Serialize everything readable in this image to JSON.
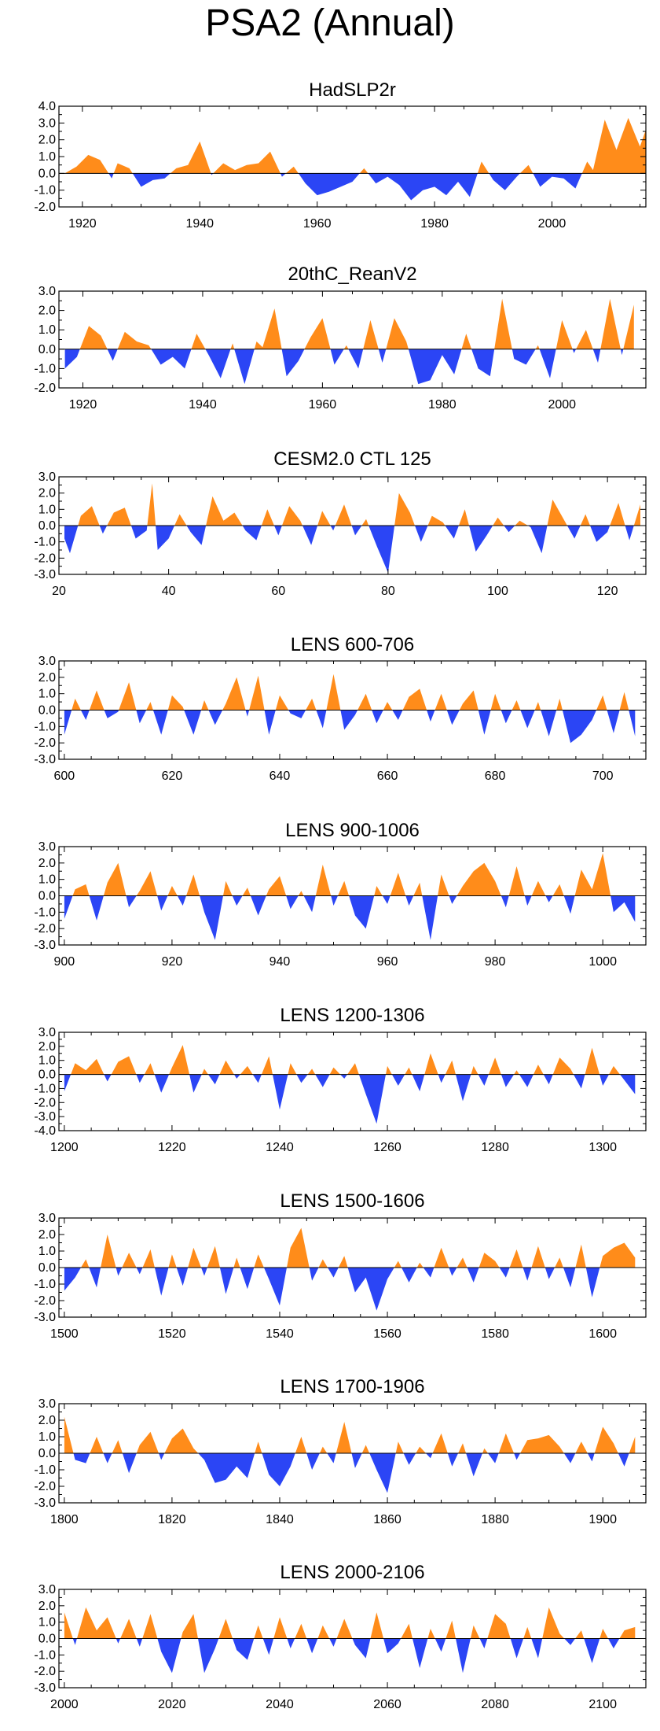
{
  "page": {
    "title": "PSA2 (Annual)"
  },
  "colors": {
    "positive": "#ff8c1a",
    "negative": "#2b45f5",
    "frame": "#000000"
  },
  "chart_data": [
    {
      "type": "area",
      "title": "HadSLP2r",
      "xlim": [
        1916,
        2016
      ],
      "ylim": [
        -2,
        4
      ],
      "yticks": [
        "4.0",
        "3.0",
        "2.0",
        "1.0",
        "0.0",
        "-1.0",
        "-2.0"
      ],
      "ytick_values": [
        4,
        3,
        2,
        1,
        0,
        -1,
        -2
      ],
      "xticks": [
        "1920",
        "1940",
        "1960",
        "1980",
        "2000"
      ],
      "xtick_values": [
        1920,
        1940,
        1960,
        1980,
        2000
      ],
      "x": [
        1917,
        1919,
        1921,
        1923,
        1925,
        1926,
        1928,
        1930,
        1932,
        1934,
        1936,
        1938,
        1940,
        1942,
        1944,
        1946,
        1948,
        1950,
        1952,
        1954,
        1956,
        1958,
        1960,
        1962,
        1964,
        1966,
        1968,
        1970,
        1972,
        1974,
        1976,
        1978,
        1980,
        1982,
        1984,
        1986,
        1988,
        1990,
        1992,
        1994,
        1996,
        1998,
        2000,
        2002,
        2004,
        2006,
        2007,
        2009,
        2011,
        2013,
        2015,
        2016
      ],
      "values": [
        0.0,
        0.4,
        1.1,
        0.8,
        -0.3,
        0.6,
        0.3,
        -0.8,
        -0.4,
        -0.3,
        0.3,
        0.5,
        1.9,
        -0.1,
        0.6,
        0.2,
        0.5,
        0.6,
        1.3,
        -0.2,
        0.4,
        -0.6,
        -1.3,
        -1.1,
        -0.8,
        -0.5,
        0.3,
        -0.6,
        -0.2,
        -0.7,
        -1.6,
        -1.0,
        -0.8,
        -1.3,
        -0.5,
        -1.4,
        0.7,
        -0.4,
        -1.0,
        -0.2,
        0.5,
        -0.8,
        -0.2,
        -0.3,
        -0.9,
        0.7,
        0.2,
        3.2,
        1.4,
        3.3,
        1.6,
        2.6
      ]
    },
    {
      "type": "area",
      "title": "20thC_ReanV2",
      "xlim": [
        1916,
        2014
      ],
      "ylim": [
        -2,
        3
      ],
      "yticks": [
        "3.0",
        "2.0",
        "1.0",
        "0.0",
        "-1.0",
        "-2.0"
      ],
      "ytick_values": [
        3,
        2,
        1,
        0,
        -1,
        -2
      ],
      "xticks": [
        "1920",
        "1940",
        "1960",
        "1980",
        "2000"
      ],
      "xtick_values": [
        1920,
        1940,
        1960,
        1980,
        2000
      ],
      "x": [
        1917,
        1919,
        1921,
        1923,
        1925,
        1927,
        1929,
        1931,
        1933,
        1935,
        1937,
        1939,
        1941,
        1943,
        1945,
        1947,
        1949,
        1950,
        1952,
        1954,
        1956,
        1958,
        1960,
        1962,
        1964,
        1966,
        1968,
        1970,
        1972,
        1974,
        1976,
        1978,
        1980,
        1982,
        1984,
        1986,
        1988,
        1990,
        1992,
        1994,
        1996,
        1998,
        2000,
        2002,
        2004,
        2006,
        2008,
        2010,
        2012
      ],
      "values": [
        -1.0,
        -0.4,
        1.2,
        0.7,
        -0.6,
        0.9,
        0.4,
        0.2,
        -0.8,
        -0.4,
        -1.0,
        0.8,
        -0.3,
        -1.5,
        0.3,
        -1.8,
        0.4,
        0.1,
        2.1,
        -1.4,
        -0.6,
        0.6,
        1.6,
        -0.8,
        0.2,
        -1.0,
        1.5,
        -0.7,
        1.6,
        0.4,
        -1.8,
        -1.6,
        -0.3,
        -1.3,
        0.8,
        -1.0,
        -1.4,
        2.6,
        -0.5,
        -0.8,
        0.2,
        -1.5,
        1.5,
        -0.2,
        1.0,
        -0.7,
        2.6,
        -0.3,
        2.3
      ]
    },
    {
      "type": "area",
      "title": "CESM2.0 CTL 125",
      "xlim": [
        20,
        127
      ],
      "ylim": [
        -3,
        3
      ],
      "yticks": [
        "3.0",
        "2.0",
        "1.0",
        "0.0",
        "-1.0",
        "-2.0",
        "-3.0"
      ],
      "ytick_values": [
        3,
        2,
        1,
        0,
        -1,
        -2,
        -3
      ],
      "xticks": [
        "20",
        "40",
        "60",
        "80",
        "100",
        "120"
      ],
      "xtick_values": [
        20,
        40,
        60,
        80,
        100,
        120
      ],
      "x": [
        21,
        22,
        24,
        26,
        28,
        30,
        32,
        34,
        36,
        37,
        38,
        40,
        42,
        44,
        46,
        48,
        50,
        52,
        54,
        56,
        58,
        60,
        62,
        64,
        66,
        68,
        70,
        72,
        74,
        76,
        78,
        80,
        82,
        84,
        86,
        88,
        90,
        92,
        94,
        96,
        98,
        100,
        102,
        104,
        106,
        108,
        110,
        112,
        114,
        116,
        118,
        120,
        122,
        124,
        126
      ],
      "values": [
        -0.8,
        -1.7,
        0.6,
        1.2,
        -0.5,
        0.8,
        1.1,
        -0.8,
        -0.3,
        2.6,
        -1.5,
        -0.8,
        0.7,
        -0.4,
        -1.2,
        1.8,
        0.3,
        0.8,
        -0.3,
        -0.9,
        1.0,
        -0.6,
        1.2,
        0.3,
        -1.2,
        0.9,
        -0.3,
        1.3,
        -0.6,
        0.4,
        -1.3,
        -2.9,
        2.0,
        0.8,
        -1.0,
        0.6,
        0.2,
        -0.8,
        1.0,
        -1.6,
        -0.6,
        0.5,
        -0.4,
        0.3,
        -0.1,
        -1.7,
        1.6,
        0.4,
        -0.8,
        0.7,
        -1.0,
        -0.4,
        1.4,
        -0.9,
        1.3
      ]
    },
    {
      "type": "area",
      "title": "LENS 600-706",
      "xlim": [
        599,
        708
      ],
      "ylim": [
        -3,
        3
      ],
      "yticks": [
        "3.0",
        "2.0",
        "1.0",
        "0.0",
        "-1.0",
        "-2.0",
        "-3.0"
      ],
      "ytick_values": [
        3,
        2,
        1,
        0,
        -1,
        -2,
        -3
      ],
      "xticks": [
        "600",
        "620",
        "640",
        "660",
        "680",
        "700"
      ],
      "xtick_values": [
        600,
        620,
        640,
        660,
        680,
        700
      ],
      "x": [
        600,
        602,
        604,
        606,
        608,
        610,
        612,
        614,
        616,
        618,
        620,
        622,
        624,
        626,
        628,
        630,
        632,
        634,
        636,
        638,
        640,
        642,
        644,
        646,
        648,
        650,
        652,
        654,
        656,
        658,
        660,
        662,
        664,
        666,
        668,
        670,
        672,
        674,
        676,
        678,
        680,
        682,
        684,
        686,
        688,
        690,
        692,
        694,
        696,
        698,
        700,
        702,
        704,
        706
      ],
      "values": [
        -1.5,
        0.7,
        -0.6,
        1.2,
        -0.5,
        -0.1,
        1.7,
        -0.8,
        0.5,
        -1.5,
        0.9,
        0.2,
        -1.5,
        0.6,
        -0.9,
        0.4,
        2.0,
        -0.4,
        2.1,
        -1.5,
        0.9,
        -0.2,
        -0.5,
        0.7,
        -1.1,
        2.2,
        -1.2,
        -0.3,
        1.0,
        -0.8,
        0.5,
        -0.6,
        0.8,
        1.3,
        -0.7,
        1.0,
        -0.9,
        0.4,
        1.2,
        -1.5,
        1.0,
        -0.8,
        0.6,
        -1.1,
        0.5,
        -1.6,
        0.7,
        -2.0,
        -1.5,
        -0.6,
        0.9,
        -1.4,
        1.1,
        -1.6
      ]
    },
    {
      "type": "area",
      "title": "LENS 900-1006",
      "xlim": [
        899,
        1008
      ],
      "ylim": [
        -3,
        3
      ],
      "yticks": [
        "3.0",
        "2.0",
        "1.0",
        "0.0",
        "-1.0",
        "-2.0",
        "-3.0"
      ],
      "ytick_values": [
        3,
        2,
        1,
        0,
        -1,
        -2,
        -3
      ],
      "xticks": [
        "900",
        "920",
        "940",
        "960",
        "980",
        "1000"
      ],
      "xtick_values": [
        900,
        920,
        940,
        960,
        980,
        1000
      ],
      "x": [
        900,
        902,
        904,
        906,
        908,
        910,
        912,
        914,
        916,
        918,
        920,
        922,
        924,
        926,
        928,
        930,
        932,
        934,
        936,
        938,
        940,
        942,
        944,
        946,
        948,
        950,
        952,
        954,
        956,
        958,
        960,
        962,
        964,
        966,
        968,
        970,
        972,
        974,
        976,
        978,
        980,
        982,
        984,
        986,
        988,
        990,
        992,
        994,
        996,
        998,
        1000,
        1002,
        1004,
        1006
      ],
      "values": [
        -1.4,
        0.4,
        0.7,
        -1.5,
        0.8,
        2.0,
        -0.7,
        0.3,
        1.5,
        -0.9,
        0.6,
        -0.6,
        1.3,
        -1.0,
        -2.7,
        0.9,
        -0.6,
        0.5,
        -1.2,
        0.4,
        1.2,
        -0.8,
        0.3,
        -1.0,
        1.9,
        -0.6,
        0.9,
        -1.2,
        -2.0,
        0.6,
        -0.5,
        1.4,
        -0.6,
        0.8,
        -2.7,
        1.3,
        -0.5,
        0.6,
        1.5,
        2.0,
        0.9,
        -0.7,
        1.8,
        -0.6,
        0.9,
        -0.4,
        0.7,
        -1.1,
        1.6,
        0.4,
        2.6,
        -1.0,
        -0.4,
        -1.6
      ]
    },
    {
      "type": "area",
      "title": "LENS 1200-1306",
      "xlim": [
        1199,
        1308
      ],
      "ylim": [
        -4,
        3
      ],
      "yticks": [
        "3.0",
        "2.0",
        "1.0",
        "0.0",
        "-1.0",
        "-2.0",
        "-3.0",
        "-4.0"
      ],
      "ytick_values": [
        3,
        2,
        1,
        0,
        -1,
        -2,
        -3,
        -4
      ],
      "xticks": [
        "1200",
        "1220",
        "1240",
        "1260",
        "1280",
        "1300"
      ],
      "xtick_values": [
        1200,
        1220,
        1240,
        1260,
        1280,
        1300
      ],
      "x": [
        1200,
        1202,
        1204,
        1206,
        1208,
        1210,
        1212,
        1214,
        1216,
        1218,
        1220,
        1222,
        1224,
        1226,
        1228,
        1230,
        1232,
        1234,
        1236,
        1238,
        1240,
        1242,
        1244,
        1246,
        1248,
        1250,
        1252,
        1254,
        1256,
        1258,
        1260,
        1262,
        1264,
        1266,
        1268,
        1270,
        1272,
        1274,
        1276,
        1278,
        1280,
        1282,
        1284,
        1286,
        1288,
        1290,
        1292,
        1294,
        1296,
        1298,
        1300,
        1302,
        1304,
        1306
      ],
      "values": [
        -1.2,
        0.8,
        0.3,
        1.1,
        -0.5,
        0.9,
        1.3,
        -0.6,
        0.8,
        -1.3,
        0.5,
        2.1,
        -1.3,
        0.4,
        -0.7,
        1.0,
        -0.3,
        0.6,
        -0.6,
        1.3,
        -2.5,
        0.8,
        -0.6,
        0.4,
        -0.9,
        0.5,
        -0.3,
        0.8,
        -1.4,
        -3.5,
        0.6,
        -0.8,
        0.5,
        -1.2,
        1.5,
        -0.6,
        1.0,
        -1.9,
        0.6,
        -0.8,
        1.2,
        -0.9,
        0.3,
        -0.9,
        0.7,
        -0.7,
        1.2,
        0.4,
        -1.0,
        1.9,
        -0.8,
        0.6,
        -0.4,
        -1.4
      ]
    },
    {
      "type": "area",
      "title": "LENS 1500-1606",
      "xlim": [
        1499,
        1608
      ],
      "ylim": [
        -3,
        3
      ],
      "yticks": [
        "3.0",
        "2.0",
        "1.0",
        "0.0",
        "-1.0",
        "-2.0",
        "-3.0"
      ],
      "ytick_values": [
        3,
        2,
        1,
        0,
        -1,
        -2,
        -3
      ],
      "xticks": [
        "1500",
        "1520",
        "1540",
        "1560",
        "1580",
        "1600"
      ],
      "xtick_values": [
        1500,
        1520,
        1540,
        1560,
        1580,
        1600
      ],
      "x": [
        1500,
        1502,
        1504,
        1506,
        1508,
        1510,
        1512,
        1514,
        1516,
        1518,
        1520,
        1522,
        1524,
        1526,
        1528,
        1530,
        1532,
        1534,
        1536,
        1538,
        1540,
        1542,
        1544,
        1546,
        1548,
        1550,
        1552,
        1554,
        1556,
        1558,
        1560,
        1562,
        1564,
        1566,
        1568,
        1570,
        1572,
        1574,
        1576,
        1578,
        1580,
        1582,
        1584,
        1586,
        1588,
        1590,
        1592,
        1594,
        1596,
        1598,
        1600,
        1602,
        1604,
        1606
      ],
      "values": [
        -1.4,
        -0.6,
        0.5,
        -1.2,
        2.0,
        -0.5,
        0.9,
        -0.4,
        1.1,
        -1.7,
        0.8,
        -1.1,
        1.2,
        -0.5,
        1.3,
        -1.6,
        0.6,
        -1.3,
        0.8,
        -0.7,
        -2.3,
        1.2,
        2.4,
        -0.8,
        0.5,
        -0.6,
        0.7,
        -1.5,
        -0.6,
        -2.6,
        -0.7,
        0.4,
        -0.9,
        0.3,
        -0.6,
        1.2,
        -0.5,
        0.6,
        -0.9,
        0.9,
        0.4,
        -0.6,
        1.1,
        -0.8,
        1.3,
        -0.7,
        0.6,
        -1.2,
        1.4,
        -1.8,
        0.7,
        1.2,
        1.5,
        0.6
      ]
    },
    {
      "type": "area",
      "title": "LENS 1700-1906",
      "xlim": [
        1799,
        1908
      ],
      "ylim": [
        -3,
        3
      ],
      "yticks": [
        "3.0",
        "2.0",
        "1.0",
        "0.0",
        "-1.0",
        "-2.0",
        "-3.0"
      ],
      "ytick_values": [
        3,
        2,
        1,
        0,
        -1,
        -2,
        -3
      ],
      "xticks": [
        "1800",
        "1820",
        "1840",
        "1860",
        "1880",
        "1900"
      ],
      "xtick_values": [
        1800,
        1820,
        1840,
        1860,
        1880,
        1900
      ],
      "x": [
        1800,
        1802,
        1804,
        1806,
        1808,
        1810,
        1812,
        1814,
        1816,
        1818,
        1820,
        1822,
        1824,
        1826,
        1828,
        1830,
        1832,
        1834,
        1836,
        1838,
        1840,
        1842,
        1844,
        1846,
        1848,
        1850,
        1852,
        1854,
        1856,
        1858,
        1860,
        1862,
        1864,
        1866,
        1868,
        1870,
        1872,
        1874,
        1876,
        1878,
        1880,
        1882,
        1884,
        1886,
        1888,
        1890,
        1892,
        1894,
        1896,
        1898,
        1900,
        1902,
        1904,
        1906
      ],
      "values": [
        2.2,
        -0.4,
        -0.6,
        1.0,
        -0.6,
        0.8,
        -1.2,
        0.5,
        1.3,
        -0.4,
        0.9,
        1.5,
        0.3,
        -0.4,
        -1.8,
        -1.6,
        -0.8,
        -1.5,
        0.7,
        -1.3,
        -2.0,
        -0.8,
        1.0,
        -1.0,
        0.4,
        -0.6,
        1.9,
        -0.9,
        0.5,
        -1.0,
        -2.4,
        0.7,
        -0.7,
        0.4,
        -0.3,
        1.2,
        -0.8,
        0.6,
        -1.4,
        0.3,
        -0.6,
        1.2,
        -0.4,
        0.8,
        0.9,
        1.1,
        0.4,
        -0.6,
        0.7,
        -0.5,
        1.6,
        0.6,
        -0.8,
        1.0
      ]
    },
    {
      "type": "area",
      "title": "LENS 2000-2106",
      "xlim": [
        1999,
        2108
      ],
      "ylim": [
        -3,
        3
      ],
      "yticks": [
        "3.0",
        "2.0",
        "1.0",
        "0.0",
        "-1.0",
        "-2.0",
        "-3.0"
      ],
      "ytick_values": [
        3,
        2,
        1,
        0,
        -1,
        -2,
        -3
      ],
      "xticks": [
        "2000",
        "2020",
        "2040",
        "2060",
        "2080",
        "2100"
      ],
      "xtick_values": [
        2000,
        2020,
        2040,
        2060,
        2080,
        2100
      ],
      "x": [
        2000,
        2002,
        2004,
        2006,
        2008,
        2010,
        2012,
        2014,
        2016,
        2018,
        2020,
        2022,
        2024,
        2026,
        2028,
        2030,
        2032,
        2034,
        2036,
        2038,
        2040,
        2042,
        2044,
        2046,
        2048,
        2050,
        2052,
        2054,
        2056,
        2058,
        2060,
        2062,
        2064,
        2066,
        2068,
        2070,
        2072,
        2074,
        2076,
        2078,
        2080,
        2082,
        2084,
        2086,
        2088,
        2090,
        2092,
        2094,
        2096,
        2098,
        2100,
        2102,
        2104,
        2106
      ],
      "values": [
        1.6,
        -0.4,
        1.9,
        0.5,
        1.3,
        -0.3,
        1.2,
        -0.5,
        1.5,
        -0.8,
        -2.1,
        0.4,
        1.5,
        -2.1,
        -0.6,
        1.2,
        -0.7,
        -1.3,
        0.8,
        -1.0,
        1.3,
        -0.6,
        0.9,
        -0.9,
        0.8,
        -0.5,
        1.2,
        -0.4,
        -1.2,
        1.6,
        -0.9,
        -0.3,
        0.9,
        -1.8,
        0.6,
        -0.8,
        1.1,
        -2.1,
        0.8,
        -0.6,
        1.5,
        0.9,
        -1.2,
        0.7,
        -1.2,
        1.9,
        0.3,
        -0.4,
        0.5,
        -1.5,
        0.6,
        -0.6,
        0.5,
        0.7
      ]
    }
  ]
}
